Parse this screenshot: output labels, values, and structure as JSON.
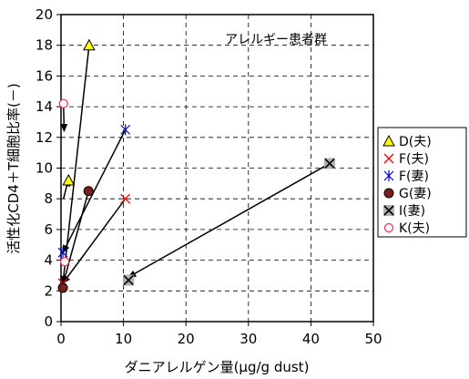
{
  "chart_data": {
    "type": "scatter",
    "title": "アレルギー患者群",
    "xlabel": "ダニアレルゲン量(μg/g dust)",
    "ylabel": "活性化CD4＋T細胞比率(－)",
    "xlim": [
      0,
      50
    ],
    "ylim": [
      0,
      20
    ],
    "x_ticks": [
      "0",
      "10",
      "20",
      "30",
      "40",
      "50"
    ],
    "y_ticks": [
      "0",
      "2",
      "4",
      "6",
      "8",
      "10",
      "12",
      "14",
      "16",
      "18",
      "20"
    ],
    "grid": true,
    "legend_position": "right",
    "series": [
      {
        "name": "D(夫)",
        "marker": "triangle",
        "color": "#000000",
        "fill": "#ffff00",
        "points": [
          {
            "x": 4.5,
            "y": 18.0
          },
          {
            "x": 1.2,
            "y": 9.2
          }
        ]
      },
      {
        "name": "F(夫)",
        "marker": "x",
        "color": "#ff0000",
        "points": [
          {
            "x": 10.3,
            "y": 8.0
          },
          {
            "x": 0.3,
            "y": 2.5
          }
        ]
      },
      {
        "name": "F(妻)",
        "marker": "star",
        "color": "#0000cc",
        "points": [
          {
            "x": 10.3,
            "y": 12.5
          },
          {
            "x": 0.3,
            "y": 4.5
          }
        ]
      },
      {
        "name": "G(妻)",
        "marker": "circle",
        "color": "#000000",
        "fill": "#7a1e1e",
        "points": [
          {
            "x": 4.4,
            "y": 8.5
          },
          {
            "x": 0.3,
            "y": 2.2
          }
        ]
      },
      {
        "name": "I(妻)",
        "marker": "boxx",
        "color": "#000000",
        "fill": "#b0b0b0",
        "points": [
          {
            "x": 43.0,
            "y": 10.3
          },
          {
            "x": 10.8,
            "y": 2.7
          }
        ]
      },
      {
        "name": "K(夫)",
        "marker": "circle-open",
        "color": "#ff3366",
        "points": [
          {
            "x": 0.4,
            "y": 14.2
          },
          {
            "x": 0.6,
            "y": 3.9
          }
        ]
      }
    ],
    "arrows": [
      {
        "from": [
          4.5,
          18.0
        ],
        "to": [
          0.3,
          2.5
        ]
      },
      {
        "from": [
          10.3,
          12.5
        ],
        "to": [
          0.3,
          4.5
        ]
      },
      {
        "from": [
          10.3,
          8.0
        ],
        "to": [
          0.3,
          2.5
        ]
      },
      {
        "from": [
          4.4,
          8.5
        ],
        "to": [
          0.3,
          2.4
        ]
      },
      {
        "from": [
          43.0,
          10.3
        ],
        "to": [
          10.8,
          2.9
        ]
      },
      {
        "from": [
          0.4,
          14.2
        ],
        "to": [
          0.5,
          12.4
        ]
      },
      {
        "from": [
          0.4,
          8.0
        ],
        "to": [
          1.2,
          9.3
        ]
      }
    ]
  }
}
